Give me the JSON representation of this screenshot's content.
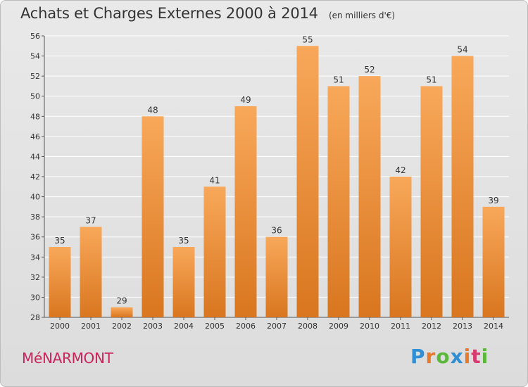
{
  "title": "Achats et Charges Externes 2000 à 2014",
  "subtitle": "(en milliers d'€)",
  "commune": "MéNARMONT",
  "logo": {
    "letters": [
      "P",
      "r",
      "o",
      "x",
      "i",
      "t",
      "i"
    ],
    "colors": [
      "#2f8fd6",
      "#e8792b",
      "#5bb83a",
      "#2f8fd6",
      "#e8792b",
      "#d63a6f",
      "#5bb83a"
    ]
  },
  "colors": {
    "bar_light": "#f8a85a",
    "bar_dark": "#d9761f",
    "grid": "#ffffff",
    "text": "#333333"
  },
  "chart_data": {
    "type": "bar",
    "categories": [
      "2000",
      "2001",
      "2002",
      "2003",
      "2004",
      "2005",
      "2006",
      "2007",
      "2008",
      "2009",
      "2010",
      "2011",
      "2012",
      "2013",
      "2014"
    ],
    "values": [
      35,
      37,
      29,
      48,
      35,
      41,
      49,
      36,
      55,
      51,
      52,
      42,
      51,
      54,
      39
    ],
    "ylim": [
      28,
      56
    ],
    "yticks": [
      28,
      30,
      32,
      34,
      36,
      38,
      40,
      42,
      44,
      46,
      48,
      50,
      52,
      54,
      56
    ],
    "grid": true,
    "data_labels": true
  }
}
